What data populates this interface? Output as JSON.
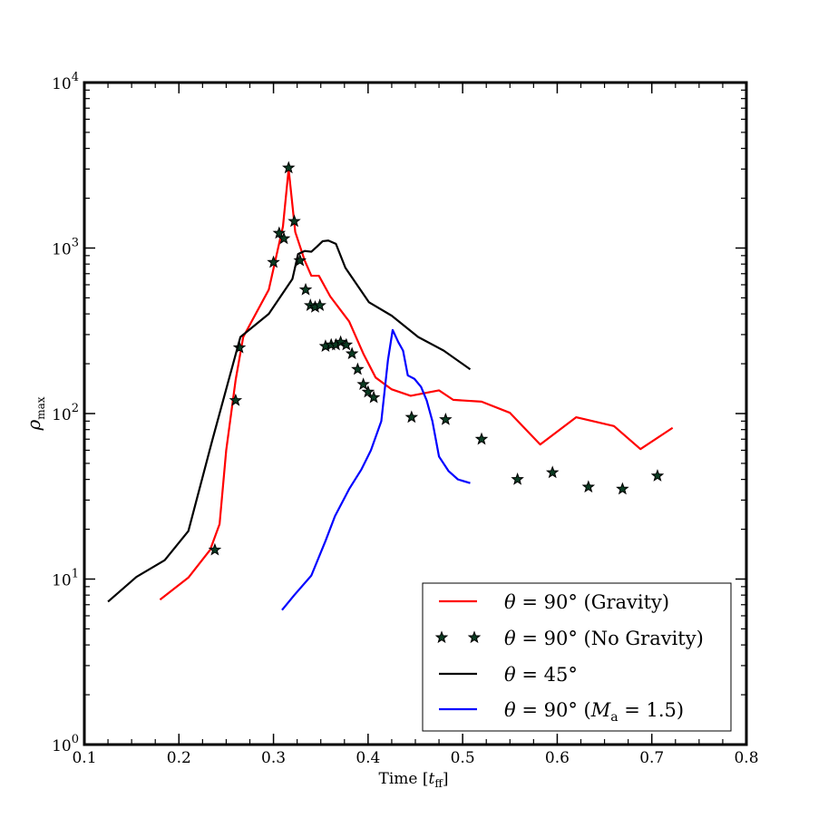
{
  "chart_data": {
    "type": "line",
    "title": "",
    "xlabel": "Time [t_ff]",
    "ylabel": "ρ_max",
    "xlim": [
      0.1,
      0.8
    ],
    "ylim": [
      1,
      10000
    ],
    "yscale": "log",
    "xticks": [
      0.1,
      0.2,
      0.3,
      0.4,
      0.5,
      0.6,
      0.7,
      0.8
    ],
    "xtick_labels": [
      "0.1",
      "0.2",
      "0.3",
      "0.4",
      "0.5",
      "0.6",
      "0.7",
      "0.8"
    ],
    "yticks": [
      1,
      10,
      100,
      1000,
      10000
    ],
    "ytick_labels": [
      {
        "base": "10",
        "exp": "0"
      },
      {
        "base": "10",
        "exp": "1"
      },
      {
        "base": "10",
        "exp": "2"
      },
      {
        "base": "10",
        "exp": "3"
      },
      {
        "base": "10",
        "exp": "4"
      }
    ],
    "legend_position": "lower-right",
    "series": [
      {
        "name": "θ = 90° (Gravity)",
        "style": "line",
        "color": "#ff0000",
        "x": [
          0.18,
          0.21,
          0.233,
          0.243,
          0.25,
          0.26,
          0.268,
          0.295,
          0.31,
          0.316,
          0.323,
          0.333,
          0.34,
          0.348,
          0.36,
          0.38,
          0.395,
          0.408,
          0.425,
          0.445,
          0.475,
          0.49,
          0.52,
          0.55,
          0.582,
          0.62,
          0.66,
          0.688,
          0.722
        ],
        "y": [
          7.5,
          10.2,
          15,
          21.5,
          60,
          160,
          290,
          560,
          1350,
          3000,
          1250,
          840,
          680,
          680,
          510,
          360,
          230,
          165,
          140,
          128,
          138,
          121,
          118,
          101,
          65,
          95,
          84,
          61,
          82
        ]
      },
      {
        "name": "θ = 90° (No Gravity)",
        "style": "marker",
        "color": "#0b3b22",
        "x": [
          0.238,
          0.26,
          0.264,
          0.3,
          0.306,
          0.311,
          0.316,
          0.322,
          0.328,
          0.334,
          0.339,
          0.344,
          0.349,
          0.355,
          0.361,
          0.366,
          0.371,
          0.377,
          0.383,
          0.389,
          0.395,
          0.4,
          0.406,
          0.446,
          0.482,
          0.52,
          0.558,
          0.595,
          0.633,
          0.669,
          0.706
        ],
        "y": [
          15,
          120,
          250,
          820,
          1230,
          1140,
          3050,
          1450,
          840,
          560,
          450,
          440,
          450,
          255,
          260,
          260,
          270,
          260,
          230,
          185,
          150,
          135,
          125,
          95,
          92,
          70,
          40,
          44,
          36,
          35,
          42
        ]
      },
      {
        "name": "θ = 45°",
        "style": "line",
        "color": "#000000",
        "x": [
          0.125,
          0.155,
          0.185,
          0.21,
          0.235,
          0.265,
          0.295,
          0.32,
          0.326,
          0.333,
          0.34,
          0.346,
          0.352,
          0.358,
          0.366,
          0.376,
          0.401,
          0.425,
          0.453,
          0.48,
          0.508
        ],
        "y": [
          7.3,
          10.3,
          13,
          19.5,
          68,
          290,
          400,
          650,
          920,
          960,
          950,
          1020,
          1100,
          1110,
          1060,
          760,
          470,
          390,
          290,
          240,
          185
        ]
      },
      {
        "name": "θ = 90° (Ma = 1.5)",
        "style": "line",
        "color": "#0000ff",
        "x": [
          0.309,
          0.322,
          0.34,
          0.355,
          0.365,
          0.38,
          0.393,
          0.403,
          0.414,
          0.421,
          0.426,
          0.432,
          0.437,
          0.442,
          0.449,
          0.456,
          0.462,
          0.468,
          0.475,
          0.485,
          0.495,
          0.508
        ],
        "y": [
          6.5,
          8.0,
          10.5,
          17,
          24,
          35,
          46,
          60,
          90,
          210,
          320,
          270,
          240,
          170,
          162,
          145,
          120,
          90,
          55,
          45,
          40,
          38
        ]
      }
    ],
    "legend": [
      {
        "label": "θ = 90° (Gravity)",
        "type": "line",
        "color": "#ff0000"
      },
      {
        "label": "θ = 90° (No Gravity)",
        "type": "marker",
        "color": "#0b3b22"
      },
      {
        "label": "θ = 45°",
        "type": "line",
        "color": "#000000"
      },
      {
        "label": "θ = 90° (Ma = 1.5)",
        "type": "line",
        "color": "#0000ff"
      }
    ]
  }
}
